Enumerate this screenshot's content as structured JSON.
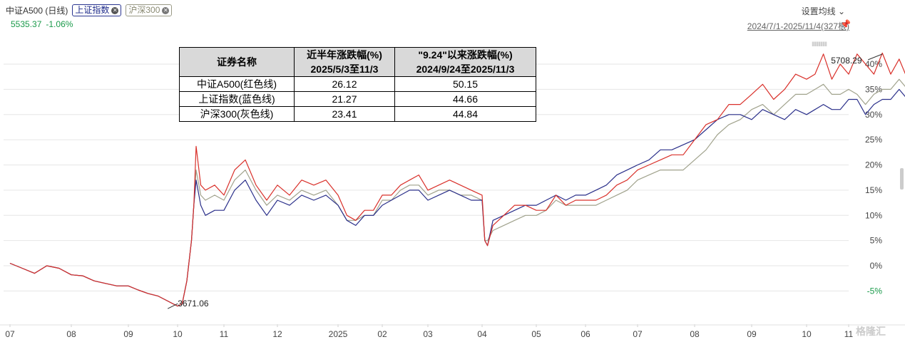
{
  "header": {
    "title": "中证A500 (日线)",
    "tags": [
      {
        "label": "上证指数",
        "color": "#1d2a8a"
      },
      {
        "label": "沪深300",
        "color": "#8a8a72"
      }
    ],
    "price": "5535.37",
    "change": "-1.06%",
    "settings": "设置均线",
    "range": "2024/7/1-2025/11/4(327根)"
  },
  "table": {
    "headers": [
      "证券名称",
      "近半年涨跌幅(%)\n2025/5/3至11/3",
      "\"9.24\"以来涨跌幅(%)\n2024/9/24至2025/11/3"
    ],
    "header_line1": [
      "证券名称",
      "近半年涨跌幅(%)",
      "\"9.24\"以来涨跌幅(%)"
    ],
    "header_line2": [
      "",
      "2025/5/3至11/3",
      "2024/9/24至2025/11/3"
    ],
    "rows": [
      [
        "中证A500(红色线)",
        "26.12",
        "50.15"
      ],
      [
        "上证指数(蓝色线)",
        "21.27",
        "44.66"
      ],
      [
        "沪深300(灰色线)",
        "23.41",
        "44.84"
      ]
    ]
  },
  "watermark": "格隆汇",
  "chart_data": {
    "type": "line",
    "x_ticks": [
      "07",
      "08",
      "09",
      "10",
      "11",
      "12",
      "2025",
      "02",
      "03",
      "04",
      "05",
      "06",
      "07",
      "08",
      "09",
      "10",
      "11"
    ],
    "y_ticks": [
      "40%",
      "35%",
      "30%",
      "25%",
      "20%",
      "15%",
      "10%",
      "5%",
      "0%",
      "-5%"
    ],
    "y_values": [
      40,
      35,
      30,
      25,
      20,
      15,
      10,
      5,
      0,
      -5
    ],
    "ylim": [
      -8.5,
      45
    ],
    "annotations": [
      {
        "text": "5708.29",
        "x": 16.8,
        "y": 42
      },
      {
        "text": "3671.06",
        "x": 2.8,
        "y": -8.5
      }
    ],
    "series": [
      {
        "color": "#d9302a",
        "x": [
          0,
          0.2,
          0.4,
          0.6,
          0.8,
          1.0,
          1.2,
          1.4,
          1.6,
          1.8,
          2.0,
          2.2,
          2.4,
          2.6,
          2.8,
          2.9,
          3.0,
          3.1,
          3.2,
          3.3,
          3.35,
          3.4,
          3.5,
          3.6,
          3.8,
          4.0,
          4.2,
          4.4,
          4.6,
          4.8,
          5.0,
          5.2,
          5.4,
          5.6,
          5.8,
          6.0,
          6.2,
          6.4,
          6.6,
          6.8,
          7.0,
          7.2,
          7.4,
          7.6,
          7.8,
          8.0,
          8.2,
          8.4,
          8.6,
          8.8,
          9.0,
          9.05,
          9.1,
          9.2,
          9.4,
          9.6,
          9.8,
          10.0,
          10.2,
          10.4,
          10.6,
          10.8,
          11.0,
          11.2,
          11.4,
          11.6,
          11.8,
          12.0,
          12.2,
          12.4,
          12.6,
          12.8,
          13.0,
          13.2,
          13.4,
          13.6,
          13.8,
          14.0,
          14.2,
          14.4,
          14.6,
          14.8,
          15.0,
          15.2,
          15.4,
          15.6,
          15.8,
          16.0,
          16.2,
          16.4,
          16.6,
          16.8,
          17.0,
          17.2,
          17.4,
          17.6,
          17.8,
          18.0,
          18.2,
          18.4,
          18.6,
          18.8,
          19.0,
          19.2,
          19.4,
          19.5
        ],
        "y": [
          0.5,
          -0.5,
          -1.5,
          0,
          -0.5,
          -1.8,
          -2,
          -3,
          -3.5,
          -4,
          -4,
          -4.8,
          -5.5,
          -6,
          -7,
          -7.5,
          -8,
          -7.5,
          -3,
          5,
          12,
          23.7,
          16,
          15,
          16,
          14,
          19,
          21,
          16,
          13,
          16,
          14,
          17,
          16,
          17,
          14,
          10,
          9,
          11,
          11,
          14,
          14,
          16,
          17,
          18,
          15,
          16,
          17,
          16,
          15,
          14,
          5,
          4,
          8,
          10,
          12,
          12,
          11,
          11,
          14,
          12,
          13,
          13,
          13,
          14,
          16,
          17,
          19,
          20,
          21,
          22,
          22,
          25,
          28,
          29,
          32,
          32,
          34,
          36,
          33,
          35,
          38,
          37,
          38,
          42,
          37,
          40,
          38,
          42,
          40,
          38,
          42.2,
          38,
          41,
          37,
          40,
          41.5,
          38,
          40,
          38,
          37.5,
          38,
          37.5,
          37.5,
          37.5,
          37.5
        ]
      },
      {
        "color": "#2a2f8a",
        "x": [
          0,
          0.2,
          0.4,
          0.6,
          0.8,
          1.0,
          1.2,
          1.4,
          1.6,
          1.8,
          2.0,
          2.2,
          2.4,
          2.6,
          2.8,
          2.9,
          3.0,
          3.1,
          3.2,
          3.3,
          3.35,
          3.4,
          3.5,
          3.6,
          3.8,
          4.0,
          4.2,
          4.4,
          4.6,
          4.8,
          5.0,
          5.2,
          5.4,
          5.6,
          5.8,
          6.0,
          6.2,
          6.4,
          6.6,
          6.8,
          7.0,
          7.2,
          7.4,
          7.6,
          7.8,
          8.0,
          8.2,
          8.4,
          8.6,
          8.8,
          9.0,
          9.05,
          9.1,
          9.2,
          9.4,
          9.6,
          9.8,
          10.0,
          10.2,
          10.4,
          10.6,
          10.8,
          11.0,
          11.2,
          11.4,
          11.6,
          11.8,
          12.0,
          12.2,
          12.4,
          12.6,
          12.8,
          13.0,
          13.2,
          13.4,
          13.6,
          13.8,
          14.0,
          14.2,
          14.4,
          14.6,
          14.8,
          15.0,
          15.2,
          15.4,
          15.6,
          15.8,
          16.0,
          16.2,
          16.4,
          16.6,
          16.8,
          17.0,
          17.2,
          17.4,
          17.6,
          17.8,
          18.0,
          18.2,
          18.4,
          18.6,
          18.8,
          19.0,
          19.2,
          19.4,
          19.5
        ],
        "y": [
          0.5,
          -0.5,
          -1.5,
          0,
          -0.5,
          -1.8,
          -2,
          -3,
          -3.5,
          -4,
          -4,
          -4.8,
          -5.5,
          -6,
          -7,
          -7.5,
          -8,
          -7.5,
          -3,
          5,
          12,
          17,
          12,
          10,
          11,
          11,
          15,
          17,
          13,
          10,
          13,
          12,
          14,
          13,
          14,
          12,
          9,
          8,
          10,
          10,
          12,
          13,
          14,
          15,
          15,
          13,
          14,
          15,
          14,
          13,
          13,
          5,
          4,
          9,
          10,
          11,
          12,
          12,
          13,
          14,
          13,
          14,
          14,
          15,
          16,
          18,
          19,
          20,
          21,
          23,
          23,
          24,
          25,
          27,
          29,
          30,
          30,
          29,
          31,
          30,
          29,
          31,
          30,
          31,
          32,
          31,
          31,
          33,
          33,
          30,
          32,
          33,
          33,
          35,
          33,
          35,
          33,
          33,
          33,
          33,
          33,
          33,
          33,
          33,
          33,
          33
        ]
      },
      {
        "color": "#a0a28c",
        "x": [
          0,
          0.2,
          0.4,
          0.6,
          0.8,
          1.0,
          1.2,
          1.4,
          1.6,
          1.8,
          2.0,
          2.2,
          2.4,
          2.6,
          2.8,
          2.9,
          3.0,
          3.1,
          3.2,
          3.3,
          3.35,
          3.4,
          3.5,
          3.6,
          3.8,
          4.0,
          4.2,
          4.4,
          4.6,
          4.8,
          5.0,
          5.2,
          5.4,
          5.6,
          5.8,
          6.0,
          6.2,
          6.4,
          6.6,
          6.8,
          7.0,
          7.2,
          7.4,
          7.6,
          7.8,
          8.0,
          8.2,
          8.4,
          8.6,
          8.8,
          9.0,
          9.05,
          9.1,
          9.2,
          9.4,
          9.6,
          9.8,
          10.0,
          10.2,
          10.4,
          10.6,
          10.8,
          11.0,
          11.2,
          11.4,
          11.6,
          11.8,
          12.0,
          12.2,
          12.4,
          12.6,
          12.8,
          13.0,
          13.2,
          13.4,
          13.6,
          13.8,
          14.0,
          14.2,
          14.4,
          14.6,
          14.8,
          15.0,
          15.2,
          15.4,
          15.6,
          15.8,
          16.0,
          16.2,
          16.4,
          16.6,
          16.8,
          17.0,
          17.2,
          17.4,
          17.6,
          17.8,
          18.0,
          18.2,
          18.4,
          18.6,
          18.8,
          19.0,
          19.2,
          19.4,
          19.5
        ],
        "y": [
          0.5,
          -0.5,
          -1.5,
          0,
          -0.5,
          -1.8,
          -2,
          -3,
          -3.5,
          -4,
          -4,
          -4.8,
          -5.5,
          -6,
          -7,
          -7.5,
          -8,
          -7.5,
          -3,
          5,
          12,
          19,
          14,
          13,
          14,
          13,
          17,
          19,
          15,
          12,
          14,
          13,
          15,
          14,
          15,
          12,
          9,
          9,
          10,
          10,
          13,
          13,
          15,
          16,
          16,
          14,
          15,
          15,
          14,
          14,
          13,
          5,
          5,
          7,
          8,
          9,
          10,
          10,
          11,
          13,
          12,
          12,
          12,
          12,
          13,
          14,
          15,
          17,
          18,
          19,
          19,
          19,
          21,
          23,
          26,
          28,
          29,
          31,
          32,
          30,
          32,
          34,
          34,
          35,
          36,
          34,
          34,
          35,
          34,
          32,
          34,
          35,
          35,
          37,
          35,
          36,
          35,
          35,
          35,
          35,
          35,
          35,
          35,
          35,
          35,
          35
        ]
      }
    ]
  }
}
